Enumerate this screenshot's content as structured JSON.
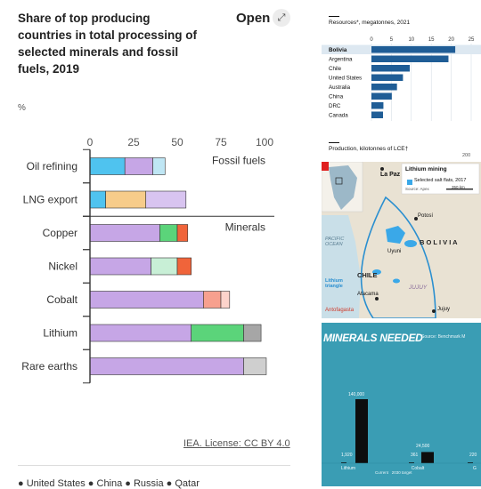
{
  "left_panel": {
    "title": "Share of top producing countries in total processing of selected minerals and fossil fuels, 2019",
    "open_label": "Open",
    "open_icon": "expand-icon",
    "unit": "%",
    "license": "IEA. License: CC BY 4.0",
    "legend_peek": "● United States   ● China   ● Russia   ● Qatar"
  },
  "chart_data": [
    {
      "type": "bar",
      "orientation": "horizontal",
      "stacked": true,
      "title": "Share of top producing countries in total processing of selected minerals and fossil fuels, 2019",
      "ylabel": "%",
      "xlim": [
        0,
        100
      ],
      "x_ticks": [
        "0",
        "25",
        "50",
        "75",
        "100"
      ],
      "group_labels": [
        {
          "label": "Fossil fuels",
          "first_row": 0
        },
        {
          "label": "Minerals",
          "first_row": 2
        }
      ],
      "categories": [
        "Oil refining",
        "LNG export",
        "Copper",
        "Nickel",
        "Cobalt",
        "Lithium",
        "Rare earths"
      ],
      "rows": [
        {
          "category": "Oil refining",
          "segments": [
            {
              "value": 20,
              "color": "#4fc3ef"
            },
            {
              "value": 16,
              "color": "#c6a6e6"
            },
            {
              "value": 7,
              "color": "#bfe6f4"
            }
          ]
        },
        {
          "category": "LNG export",
          "segments": [
            {
              "value": 9,
              "color": "#4fc3ef"
            },
            {
              "value": 23,
              "color": "#f7cc8a"
            },
            {
              "value": 23,
              "color": "#d8c4f0"
            }
          ]
        },
        {
          "category": "Copper",
          "segments": [
            {
              "value": 40,
              "color": "#c6a6e6"
            },
            {
              "value": 10,
              "color": "#5bd47a"
            },
            {
              "value": 6,
              "color": "#f0643a"
            }
          ]
        },
        {
          "category": "Nickel",
          "segments": [
            {
              "value": 35,
              "color": "#c6a6e6"
            },
            {
              "value": 15,
              "color": "#c8efd6"
            },
            {
              "value": 8,
              "color": "#f0643a"
            }
          ]
        },
        {
          "category": "Cobalt",
          "segments": [
            {
              "value": 65,
              "color": "#c6a6e6"
            },
            {
              "value": 10,
              "color": "#f7a08e"
            },
            {
              "value": 5,
              "color": "#fcd3cb"
            }
          ]
        },
        {
          "category": "Lithium",
          "segments": [
            {
              "value": 58,
              "color": "#c6a6e6"
            },
            {
              "value": 30,
              "color": "#5bd47a"
            },
            {
              "value": 10,
              "color": "#a6a6a6"
            }
          ]
        },
        {
          "category": "Rare earths",
          "segments": [
            {
              "value": 88,
              "color": "#c6a6e6"
            },
            {
              "value": 13,
              "color": "#cfcfcf"
            }
          ]
        }
      ]
    },
    {
      "type": "bar",
      "orientation": "horizontal",
      "title": "Resources*, megatonnes, 2021",
      "xlim": [
        0,
        25
      ],
      "x_ticks": [
        "0",
        "5",
        "10",
        "15",
        "20",
        "25"
      ],
      "categories": [
        "Bolivia",
        "Argentina",
        "Chile",
        "United States",
        "Australia",
        "China",
        "DRC",
        "Canada"
      ],
      "values": [
        21,
        19.3,
        9.6,
        7.9,
        6.4,
        5.1,
        3,
        2.9
      ],
      "highlight": "Bolivia",
      "colors": {
        "bar": "#1f5d96",
        "highlight": "#1f5d96"
      }
    },
    {
      "type": "bar",
      "title": "MINERALS NEEDED",
      "source": "Source: Benchmark M",
      "categories": [
        "Lithium",
        "Cobalt",
        "G"
      ],
      "series": [
        {
          "name": "Current",
          "values": [
            1920,
            361,
            220
          ]
        },
        {
          "name": "2030 target",
          "values": [
            140000,
            24500,
            null
          ]
        }
      ],
      "value_labels": [
        "1,920",
        "140,000",
        "361",
        "24,500",
        "220"
      ]
    }
  ],
  "econ_panel": {
    "title": "Resources*, megatonnes, 2021",
    "production_title": "Production, kilotonnes of LCE†",
    "production_tick": "200"
  },
  "map_panel": {
    "title": "Lithium mining",
    "legend": "Selected salt flats, 2017",
    "source": "Source: Apex",
    "scale": "350 km",
    "labels": {
      "la_paz": "La Paz",
      "potosi": "Potosí",
      "bolivia": "B O L I V I A",
      "pacific": "PACIFIC\nOCEAN",
      "uyuni": "Uyuni",
      "chile": "CHILE",
      "triangle": "Lithium\ntriangle",
      "atacama": "Atacama",
      "jujuy": "JUJUY",
      "jujuy_city": "Jujuy",
      "antofagasta": "Antofagasta"
    }
  },
  "needed_panel": {
    "title": "MINERALS NEEDED",
    "source": "Source: Benchmark M",
    "legend_current": "Current",
    "legend_target": "2030 target"
  }
}
